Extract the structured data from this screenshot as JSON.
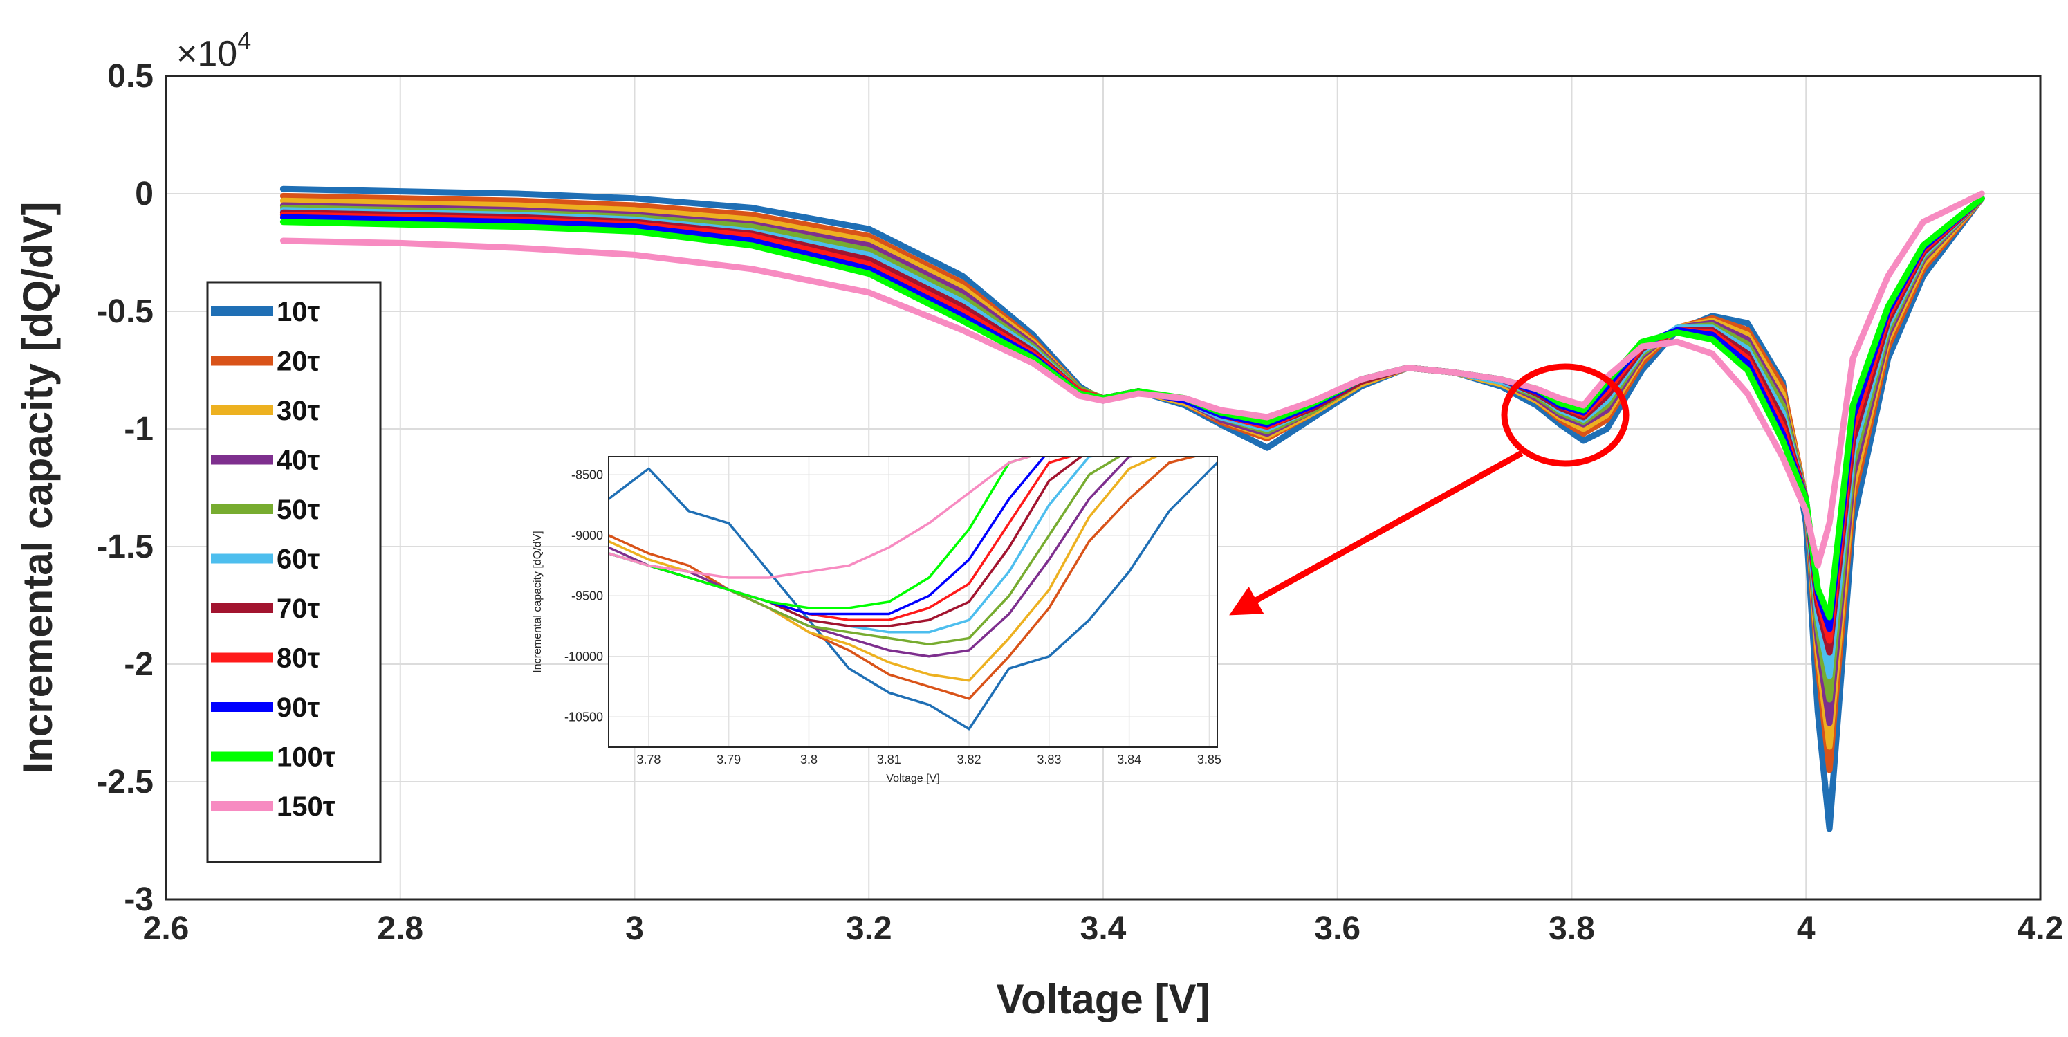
{
  "chart_data": [
    {
      "type": "line",
      "title": "",
      "xlabel": "Voltage [V]",
      "ylabel": "Incremental capacity [dQ/dV]",
      "y_multiplier_label": "×10",
      "y_multiplier_exp": "4",
      "xlim": [
        2.6,
        4.2
      ],
      "ylim": [
        -3,
        0.5
      ],
      "xticks": [
        2.6,
        2.8,
        3,
        3.2,
        3.4,
        3.6,
        3.8,
        4,
        4.2
      ],
      "xtick_labels": [
        "2.6",
        "2.8",
        "3",
        "3.2",
        "3.4",
        "3.6",
        "3.8",
        "4",
        "4.2"
      ],
      "yticks": [
        0.5,
        0,
        -0.5,
        -1,
        -1.5,
        -2,
        -2.5,
        -3
      ],
      "ytick_labels": [
        "0.5",
        "0",
        "-0.5",
        "-1",
        "-1.5",
        "-2",
        "-2.5",
        "-3"
      ],
      "grid": true,
      "legend_position": "left",
      "x": [
        2.7,
        2.8,
        2.9,
        3.0,
        3.1,
        3.2,
        3.28,
        3.34,
        3.38,
        3.4,
        3.43,
        3.47,
        3.5,
        3.54,
        3.58,
        3.62,
        3.66,
        3.7,
        3.74,
        3.77,
        3.79,
        3.81,
        3.83,
        3.86,
        3.89,
        3.92,
        3.95,
        3.98,
        4.0,
        4.01,
        4.02,
        4.04,
        4.07,
        4.1,
        4.15
      ],
      "series": [
        {
          "name": "10τ",
          "color": "#1f6fb5",
          "values": [
            0.02,
            0.01,
            0.0,
            -0.02,
            -0.06,
            -0.15,
            -0.35,
            -0.6,
            -0.82,
            -0.88,
            -0.84,
            -0.9,
            -0.98,
            -1.08,
            -0.95,
            -0.82,
            -0.74,
            -0.76,
            -0.82,
            -0.9,
            -0.98,
            -1.05,
            -1.0,
            -0.75,
            -0.58,
            -0.52,
            -0.55,
            -0.8,
            -1.4,
            -2.2,
            -2.7,
            -1.4,
            -0.7,
            -0.35,
            -0.02
          ]
        },
        {
          "name": "20τ",
          "color": "#d95319",
          "values": [
            -0.01,
            -0.02,
            -0.03,
            -0.05,
            -0.09,
            -0.18,
            -0.38,
            -0.62,
            -0.83,
            -0.87,
            -0.84,
            -0.89,
            -0.97,
            -1.04,
            -0.93,
            -0.81,
            -0.74,
            -0.76,
            -0.81,
            -0.88,
            -0.96,
            -1.02,
            -0.96,
            -0.72,
            -0.57,
            -0.53,
            -0.58,
            -0.82,
            -1.3,
            -2.0,
            -2.45,
            -1.3,
            -0.65,
            -0.32,
            -0.02
          ]
        },
        {
          "name": "30τ",
          "color": "#edb120",
          "values": [
            -0.03,
            -0.04,
            -0.05,
            -0.07,
            -0.11,
            -0.2,
            -0.4,
            -0.63,
            -0.83,
            -0.87,
            -0.84,
            -0.89,
            -0.96,
            -1.03,
            -0.93,
            -0.81,
            -0.74,
            -0.76,
            -0.81,
            -0.88,
            -0.95,
            -1.0,
            -0.94,
            -0.7,
            -0.57,
            -0.54,
            -0.6,
            -0.85,
            -1.3,
            -1.95,
            -2.35,
            -1.25,
            -0.62,
            -0.3,
            -0.02
          ]
        },
        {
          "name": "40τ",
          "color": "#7e2f8e",
          "values": [
            -0.05,
            -0.06,
            -0.07,
            -0.09,
            -0.13,
            -0.22,
            -0.42,
            -0.64,
            -0.83,
            -0.87,
            -0.84,
            -0.88,
            -0.96,
            -1.02,
            -0.92,
            -0.8,
            -0.74,
            -0.76,
            -0.8,
            -0.87,
            -0.94,
            -0.98,
            -0.92,
            -0.69,
            -0.57,
            -0.55,
            -0.62,
            -0.88,
            -1.3,
            -1.9,
            -2.25,
            -1.2,
            -0.6,
            -0.28,
            -0.02
          ]
        },
        {
          "name": "50τ",
          "color": "#77ac30",
          "values": [
            -0.06,
            -0.07,
            -0.08,
            -0.1,
            -0.14,
            -0.24,
            -0.44,
            -0.65,
            -0.83,
            -0.87,
            -0.84,
            -0.88,
            -0.95,
            -1.01,
            -0.92,
            -0.8,
            -0.74,
            -0.76,
            -0.8,
            -0.86,
            -0.93,
            -0.97,
            -0.9,
            -0.68,
            -0.57,
            -0.56,
            -0.64,
            -0.9,
            -1.3,
            -1.85,
            -2.15,
            -1.15,
            -0.58,
            -0.27,
            -0.02
          ]
        },
        {
          "name": "60τ",
          "color": "#4dbeee",
          "values": [
            -0.07,
            -0.08,
            -0.09,
            -0.11,
            -0.16,
            -0.26,
            -0.46,
            -0.66,
            -0.84,
            -0.87,
            -0.84,
            -0.88,
            -0.95,
            -1.0,
            -0.91,
            -0.8,
            -0.74,
            -0.76,
            -0.8,
            -0.85,
            -0.92,
            -0.96,
            -0.88,
            -0.67,
            -0.57,
            -0.57,
            -0.66,
            -0.93,
            -1.3,
            -1.8,
            -2.05,
            -1.1,
            -0.56,
            -0.26,
            -0.02
          ]
        },
        {
          "name": "70τ",
          "color": "#a2142f",
          "values": [
            -0.08,
            -0.09,
            -0.1,
            -0.12,
            -0.17,
            -0.28,
            -0.48,
            -0.67,
            -0.84,
            -0.87,
            -0.84,
            -0.88,
            -0.94,
            -0.99,
            -0.91,
            -0.8,
            -0.74,
            -0.76,
            -0.79,
            -0.85,
            -0.91,
            -0.95,
            -0.86,
            -0.66,
            -0.58,
            -0.58,
            -0.68,
            -0.96,
            -1.3,
            -1.75,
            -1.95,
            -1.05,
            -0.54,
            -0.25,
            -0.02
          ]
        },
        {
          "name": "80τ",
          "color": "#ff1a1a",
          "values": [
            -0.09,
            -0.1,
            -0.11,
            -0.13,
            -0.18,
            -0.3,
            -0.5,
            -0.68,
            -0.84,
            -0.87,
            -0.84,
            -0.88,
            -0.94,
            -0.99,
            -0.9,
            -0.79,
            -0.74,
            -0.76,
            -0.79,
            -0.84,
            -0.9,
            -0.94,
            -0.84,
            -0.65,
            -0.58,
            -0.59,
            -0.7,
            -0.99,
            -1.3,
            -1.72,
            -1.9,
            -1.0,
            -0.52,
            -0.24,
            -0.02
          ]
        },
        {
          "name": "90τ",
          "color": "#0000ff",
          "values": [
            -0.1,
            -0.11,
            -0.12,
            -0.14,
            -0.2,
            -0.32,
            -0.52,
            -0.69,
            -0.85,
            -0.87,
            -0.84,
            -0.88,
            -0.94,
            -0.98,
            -0.9,
            -0.79,
            -0.74,
            -0.76,
            -0.79,
            -0.84,
            -0.9,
            -0.93,
            -0.82,
            -0.64,
            -0.58,
            -0.6,
            -0.72,
            -1.02,
            -1.3,
            -1.7,
            -1.85,
            -0.95,
            -0.5,
            -0.23,
            -0.02
          ]
        },
        {
          "name": "100τ",
          "color": "#00ff00",
          "values": [
            -0.12,
            -0.13,
            -0.14,
            -0.16,
            -0.22,
            -0.34,
            -0.54,
            -0.7,
            -0.85,
            -0.87,
            -0.84,
            -0.87,
            -0.93,
            -0.97,
            -0.89,
            -0.79,
            -0.74,
            -0.76,
            -0.79,
            -0.83,
            -0.89,
            -0.92,
            -0.8,
            -0.63,
            -0.59,
            -0.62,
            -0.75,
            -1.05,
            -1.3,
            -1.68,
            -1.8,
            -0.9,
            -0.48,
            -0.22,
            -0.02
          ]
        },
        {
          "name": "150τ",
          "color": "#f78bc1",
          "values": [
            -0.2,
            -0.21,
            -0.23,
            -0.26,
            -0.32,
            -0.42,
            -0.58,
            -0.72,
            -0.86,
            -0.88,
            -0.85,
            -0.87,
            -0.92,
            -0.95,
            -0.88,
            -0.79,
            -0.74,
            -0.76,
            -0.79,
            -0.83,
            -0.87,
            -0.9,
            -0.78,
            -0.65,
            -0.63,
            -0.68,
            -0.85,
            -1.12,
            -1.35,
            -1.58,
            -1.4,
            -0.7,
            -0.35,
            -0.12,
            0.0
          ]
        }
      ]
    },
    {
      "type": "line",
      "title": "",
      "xlabel": "Voltage [V]",
      "ylabel": "Incremental capacity [dQ/dV]",
      "xlim": [
        3.775,
        3.851
      ],
      "ylim": [
        -10750,
        -8350
      ],
      "xticks": [
        3.78,
        3.79,
        3.8,
        3.81,
        3.82,
        3.83,
        3.84,
        3.85
      ],
      "xtick_labels": [
        "3.78",
        "3.79",
        "3.8",
        "3.81",
        "3.82",
        "3.83",
        "3.84",
        "3.85"
      ],
      "yticks": [
        -8500,
        -9000,
        -9500,
        -10000,
        -10500
      ],
      "ytick_labels": [
        "-8500",
        "-9000",
        "-9500",
        "-10000",
        "-10500"
      ],
      "grid": true,
      "x": [
        3.775,
        3.78,
        3.785,
        3.79,
        3.795,
        3.8,
        3.805,
        3.81,
        3.815,
        3.82,
        3.825,
        3.83,
        3.835,
        3.84,
        3.845,
        3.851
      ],
      "series": [
        {
          "name": "10τ",
          "color": "#1f6fb5",
          "values": [
            -8700,
            -8450,
            -8800,
            -8900,
            -9300,
            -9700,
            -10100,
            -10300,
            -10400,
            -10600,
            -10100,
            -10000,
            -9700,
            -9300,
            -8800,
            -8400
          ]
        },
        {
          "name": "20τ",
          "color": "#d95319",
          "values": [
            -9000,
            -9150,
            -9250,
            -9450,
            -9600,
            -9800,
            -9950,
            -10150,
            -10250,
            -10350,
            -10000,
            -9600,
            -9050,
            -8700,
            -8400,
            -8300
          ]
        },
        {
          "name": "30τ",
          "color": "#edb120",
          "values": [
            -9050,
            -9200,
            -9300,
            -9450,
            -9600,
            -9800,
            -9900,
            -10050,
            -10150,
            -10200,
            -9850,
            -9450,
            -8850,
            -8450,
            -8300,
            -8300
          ]
        },
        {
          "name": "40τ",
          "color": "#7e2f8e",
          "values": [
            -9100,
            -9250,
            -9300,
            -9450,
            -9600,
            -9750,
            -9850,
            -9950,
            -10000,
            -9950,
            -9650,
            -9200,
            -8700,
            -8350,
            -8300,
            -8300
          ]
        },
        {
          "name": "50τ",
          "color": "#77ac30",
          "values": [
            -9150,
            -9250,
            -9350,
            -9450,
            -9600,
            -9750,
            -9800,
            -9850,
            -9900,
            -9850,
            -9500,
            -9000,
            -8500,
            -8300,
            -8300,
            -8300
          ]
        },
        {
          "name": "60τ",
          "color": "#4dbeee",
          "values": [
            -9150,
            -9250,
            -9350,
            -9450,
            -9550,
            -9700,
            -9750,
            -9800,
            -9800,
            -9700,
            -9300,
            -8750,
            -8350,
            -8300,
            -8300,
            -8300
          ]
        },
        {
          "name": "70τ",
          "color": "#a2142f",
          "values": [
            -9150,
            -9250,
            -9350,
            -9450,
            -9550,
            -9700,
            -9750,
            -9750,
            -9700,
            -9550,
            -9100,
            -8550,
            -8300,
            -8300,
            -8300,
            -8300
          ]
        },
        {
          "name": "80τ",
          "color": "#ff1a1a",
          "values": [
            -9150,
            -9250,
            -9350,
            -9450,
            -9550,
            -9650,
            -9700,
            -9700,
            -9600,
            -9400,
            -8900,
            -8400,
            -8300,
            -8300,
            -8300,
            -8300
          ]
        },
        {
          "name": "90τ",
          "color": "#0000ff",
          "values": [
            -9150,
            -9250,
            -9350,
            -9450,
            -9550,
            -9650,
            -9650,
            -9650,
            -9500,
            -9200,
            -8700,
            -8300,
            -8300,
            -8300,
            -8300,
            -8300
          ]
        },
        {
          "name": "100τ",
          "color": "#00ff00",
          "values": [
            -9150,
            -9250,
            -9350,
            -9450,
            -9550,
            -9600,
            -9600,
            -9550,
            -9350,
            -8950,
            -8400,
            -8300,
            -8300,
            -8300,
            -8300,
            -8300
          ]
        },
        {
          "name": "150τ",
          "color": "#f78bc1",
          "values": [
            -9150,
            -9250,
            -9300,
            -9350,
            -9350,
            -9300,
            -9250,
            -9100,
            -8900,
            -8650,
            -8400,
            -8300,
            -8300,
            -8300,
            -8300,
            -8300
          ]
        }
      ]
    }
  ],
  "annotation": {
    "highlight_color": "#ff0000",
    "arrow_color": "#ff0000"
  }
}
